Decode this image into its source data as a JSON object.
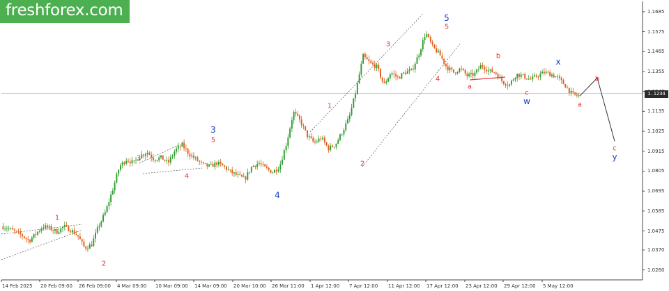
{
  "brand": {
    "logo_text": "freshforex.com",
    "logo_bg": "#4caf50"
  },
  "colors": {
    "up": "#2e9e2e",
    "down": "#e0601a",
    "wave_red": "#e53935",
    "wave_blue": "#1a3fc2",
    "grid": "#b0b0b0"
  },
  "chart_data": {
    "type": "line",
    "title": "",
    "xlabel": "",
    "ylabel": "",
    "current_price": "1.1234",
    "ylim": [
      1.0205,
      1.1742
    ],
    "y_ticks": [
      "1.1685",
      "1.1575",
      "1.1465",
      "1.1355",
      "1.1245",
      "1.1135",
      "1.1025",
      "1.0915",
      "1.0805",
      "1.0695",
      "1.0585",
      "1.0475",
      "1.0370",
      "1.0260"
    ],
    "x_ticks": [
      "14 Feb 2025",
      "20 Feb 09:00",
      "26 Feb 09:00",
      "4 Mar 09:00",
      "10 Mar 09:00",
      "14 Mar 09:00",
      "20 Mar 10:00",
      "26 Mar 11:00",
      "1 Apr 12:00",
      "7 Apr 12:00",
      "11 Apr 12:00",
      "17 Apr 12:00",
      "23 Apr 12:00",
      "29 Apr 12:00",
      "5 May 12:00"
    ],
    "series": [
      {
        "values": [
          1.05,
          1.049,
          1.047,
          1.045,
          1.042,
          1.046,
          1.05,
          1.049,
          1.047,
          1.05,
          1.048,
          1.045,
          1.038,
          1.04,
          1.05,
          1.058,
          1.07,
          1.083,
          1.087,
          1.085,
          1.089,
          1.091,
          1.087,
          1.088,
          1.085,
          1.092,
          1.095,
          1.09,
          1.087,
          1.084,
          1.083,
          1.085,
          1.083,
          1.08,
          1.078,
          1.076,
          1.083,
          1.085,
          1.082,
          1.08,
          1.083,
          1.096,
          1.113,
          1.108,
          1.1,
          1.096,
          1.099,
          1.093,
          1.095,
          1.102,
          1.11,
          1.125,
          1.144,
          1.14,
          1.138,
          1.128,
          1.135,
          1.132,
          1.135,
          1.136,
          1.145,
          1.157,
          1.149,
          1.145,
          1.138,
          1.135,
          1.137,
          1.133,
          1.134,
          1.139,
          1.136,
          1.135,
          1.13,
          1.128,
          1.134,
          1.133,
          1.131,
          1.133,
          1.135,
          1.134,
          1.132,
          1.128,
          1.123,
          1.122
        ]
      }
    ],
    "forecast_path": [
      1.122,
      1.132,
      1.097
    ],
    "wave_labels": [
      {
        "text": "1"
      },
      {
        "text": "2"
      },
      {
        "text": "3"
      },
      {
        "text": "4"
      },
      {
        "text": "3",
        "color": "blue"
      },
      {
        "text": "5"
      },
      {
        "text": "4",
        "color": "blue"
      },
      {
        "text": "1"
      },
      {
        "text": "2"
      },
      {
        "text": "3"
      },
      {
        "text": "4"
      },
      {
        "text": "5",
        "color": "blue"
      },
      {
        "text": "5"
      },
      {
        "text": "a"
      },
      {
        "text": "b"
      },
      {
        "text": "c"
      },
      {
        "text": "w",
        "color": "blue"
      },
      {
        "text": "x",
        "color": "blue"
      },
      {
        "text": "a"
      },
      {
        "text": "b"
      },
      {
        "text": "c"
      },
      {
        "text": "y",
        "color": "blue"
      }
    ]
  }
}
